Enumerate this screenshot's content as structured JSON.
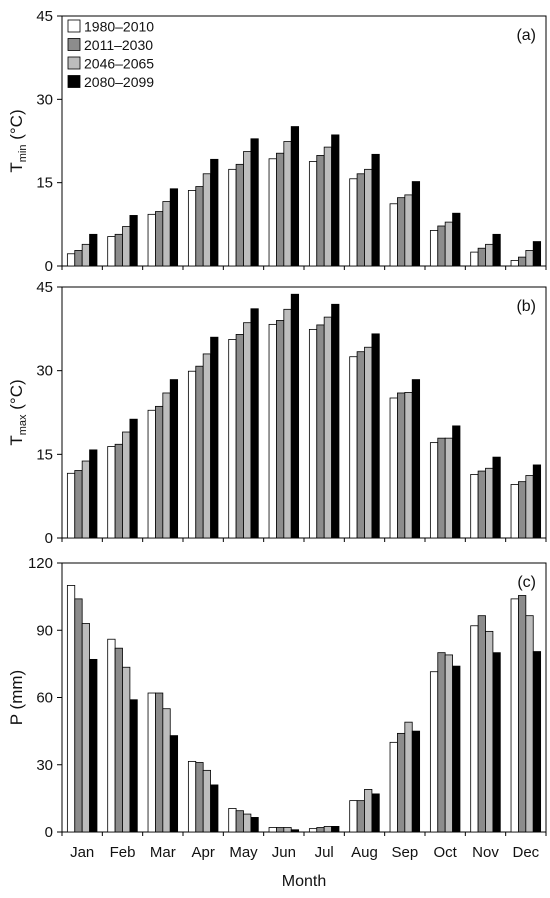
{
  "chart_data": {
    "type": "bar",
    "xlabel": "Month",
    "categories": [
      "Jan",
      "Feb",
      "Mar",
      "Apr",
      "May",
      "Jun",
      "Jul",
      "Aug",
      "Sep",
      "Oct",
      "Nov",
      "Dec"
    ],
    "legend": {
      "placement": "top-left",
      "entries": [
        "1980–2010",
        "2011–2030",
        "2046–2065",
        "2080–2099"
      ]
    },
    "series_colors": [
      "#ffffff",
      "#8c8c8c",
      "#bdbdbd",
      "#000000"
    ],
    "grid": false,
    "panels": [
      {
        "tag": "(a)",
        "ylabel_main": "T",
        "ylabel_sub": "min",
        "ylabel_unit": " (°C)",
        "ylim": [
          0,
          45
        ],
        "yticks": [
          0,
          15,
          30,
          45
        ],
        "series": [
          {
            "name": "1980–2010",
            "values": [
              2.2,
              5.3,
              9.3,
              13.6,
              17.4,
              19.3,
              18.8,
              15.7,
              11.2,
              6.4,
              2.5,
              1.0
            ]
          },
          {
            "name": "2011–2030",
            "values": [
              2.8,
              5.7,
              9.8,
              14.3,
              18.3,
              20.3,
              19.9,
              16.6,
              12.3,
              7.2,
              3.2,
              1.6
            ]
          },
          {
            "name": "2046–2065",
            "values": [
              3.9,
              7.1,
              11.6,
              16.6,
              20.6,
              22.4,
              21.4,
              17.4,
              12.8,
              7.9,
              3.9,
              2.8
            ]
          },
          {
            "name": "2080–2099",
            "values": [
              5.7,
              9.1,
              13.9,
              19.2,
              22.9,
              25.1,
              23.6,
              20.1,
              15.2,
              9.5,
              5.7,
              4.4
            ]
          }
        ]
      },
      {
        "tag": "(b)",
        "ylabel_main": "T",
        "ylabel_sub": "max",
        "ylabel_unit": " (°C)",
        "ylim": [
          0,
          45
        ],
        "yticks": [
          0,
          15,
          30,
          45
        ],
        "series": [
          {
            "name": "1980–2010",
            "values": [
              11.6,
              16.4,
              22.9,
              29.9,
              35.6,
              38.3,
              37.4,
              32.5,
              25.1,
              17.1,
              11.4,
              9.6
            ]
          },
          {
            "name": "2011–2030",
            "values": [
              12.1,
              16.8,
              23.6,
              30.8,
              36.5,
              39.0,
              38.2,
              33.4,
              26.0,
              17.9,
              12.0,
              10.1
            ]
          },
          {
            "name": "2046–2065",
            "values": [
              13.8,
              19.0,
              26.0,
              33.0,
              38.6,
              41.0,
              39.6,
              34.2,
              26.1,
              17.9,
              12.5,
              11.2
            ]
          },
          {
            "name": "2080–2099",
            "values": [
              15.8,
              21.3,
              28.4,
              36.0,
              41.1,
              43.7,
              41.9,
              36.6,
              28.4,
              20.1,
              14.5,
              13.1
            ]
          }
        ]
      },
      {
        "tag": "(c)",
        "ylabel_main": "P (mm)",
        "ylabel_sub": "",
        "ylabel_unit": "",
        "ylim": [
          0,
          120
        ],
        "yticks": [
          0,
          30,
          60,
          90,
          120
        ],
        "series": [
          {
            "name": "1980–2010",
            "values": [
              110.0,
              86.0,
              62.0,
              31.5,
              10.5,
              2.0,
              1.5,
              14.0,
              40.0,
              71.5,
              92.0,
              104.0
            ]
          },
          {
            "name": "2011–2030",
            "values": [
              104.0,
              82.0,
              62.0,
              31.0,
              9.5,
              2.0,
              2.0,
              14.0,
              44.0,
              80.0,
              96.5,
              105.5
            ]
          },
          {
            "name": "2046–2065",
            "values": [
              93.0,
              73.5,
              55.0,
              27.5,
              8.0,
              2.0,
              2.5,
              19.0,
              49.0,
              79.0,
              89.5,
              96.5
            ]
          },
          {
            "name": "2080–2099",
            "values": [
              77.0,
              59.0,
              43.0,
              21.0,
              6.5,
              1.0,
              2.5,
              17.0,
              45.0,
              74.0,
              80.0,
              80.5
            ]
          }
        ]
      }
    ]
  }
}
